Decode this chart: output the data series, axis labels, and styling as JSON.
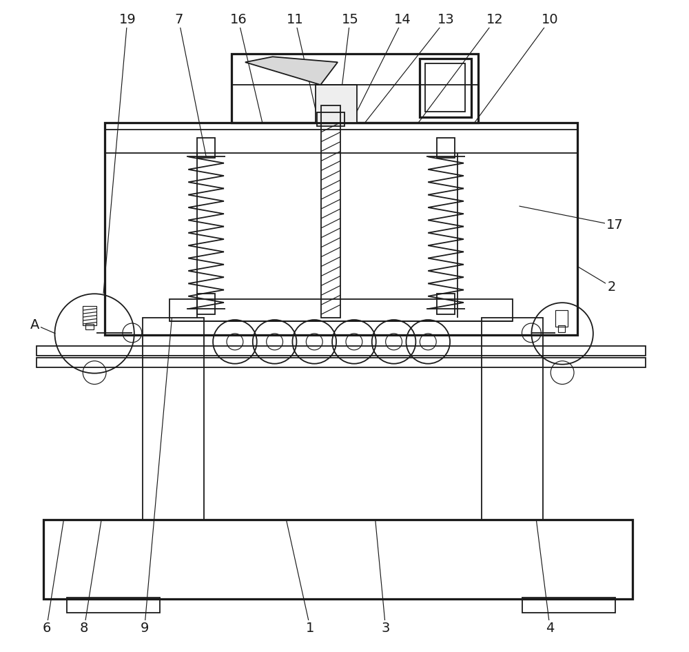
{
  "bg_color": "#ffffff",
  "line_color": "#1a1a1a",
  "lw": 1.3,
  "fig_width": 10.0,
  "fig_height": 9.46
}
